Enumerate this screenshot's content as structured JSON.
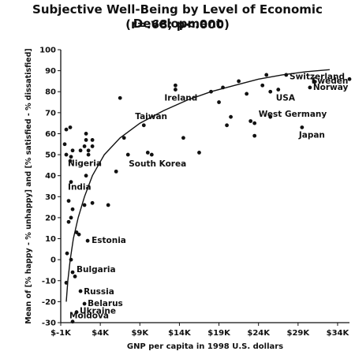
{
  "chart_data": {
    "type": "scatter",
    "title": "Subjective Well-Being by Level of Economic Development",
    "subtitle": "(r=.68; p<.000)",
    "xlabel": "GNP per capita in 1998 U.S. dollars",
    "ylabel": "Mean of [% happy - % unhappy] and [% satisfied - % dissatisfied]",
    "xlim": [
      -1,
      35.5
    ],
    "ylim": [
      -30,
      100
    ],
    "x_unit": "thousands of 1998 U.S. dollars",
    "x_ticks": [
      {
        "value": -1,
        "label": "$-1K"
      },
      {
        "value": 4,
        "label": "$4K"
      },
      {
        "value": 9,
        "label": "$9K"
      },
      {
        "value": 14,
        "label": "$14K"
      },
      {
        "value": 19,
        "label": "$19K"
      },
      {
        "value": 24,
        "label": "$24K"
      },
      {
        "value": 29,
        "label": "$29K"
      },
      {
        "value": 34,
        "label": "$34K"
      }
    ],
    "y_ticks": [
      -30,
      -20,
      -10,
      0,
      10,
      20,
      30,
      40,
      50,
      60,
      70,
      80,
      90,
      100
    ],
    "grid": false,
    "legend": "none",
    "points": [
      {
        "x": 0.5,
        "y": -29.5,
        "label": "Moldova"
      },
      {
        "x": 1.0,
        "y": -25,
        "label": "Ukraine"
      },
      {
        "x": 2.0,
        "y": -21,
        "label": "Belarus"
      },
      {
        "x": 1.5,
        "y": -15,
        "label": "Russia"
      },
      {
        "x": 0.5,
        "y": -6,
        "label": "Bulgaria"
      },
      {
        "x": 2.4,
        "y": 9,
        "label": "Estonia"
      },
      {
        "x": 0.3,
        "y": 37,
        "label": "India"
      },
      {
        "x": 0.3,
        "y": 49,
        "label": "Nigeria"
      },
      {
        "x": 7.5,
        "y": 50,
        "label": "South Korea"
      },
      {
        "x": 9.5,
        "y": 64,
        "label": "Taiwan"
      },
      {
        "x": 13.5,
        "y": 81,
        "label": "Ireland"
      },
      {
        "x": 25.5,
        "y": 68,
        "label": "West Germany"
      },
      {
        "x": 29.5,
        "y": 63,
        "label": "Japan"
      },
      {
        "x": 26.5,
        "y": 81,
        "label": "USA"
      },
      {
        "x": 30.5,
        "y": 82,
        "label": "Norway"
      },
      {
        "x": 31.0,
        "y": 85,
        "label": "Sweden"
      },
      {
        "x": 35.5,
        "y": 86,
        "label": "Switzerland"
      },
      {
        "x": -0.3,
        "y": 62
      },
      {
        "x": 0.2,
        "y": 63
      },
      {
        "x": -0.5,
        "y": 55
      },
      {
        "x": -0.3,
        "y": 50
      },
      {
        "x": 0.2,
        "y": 47
      },
      {
        "x": 0.5,
        "y": 52
      },
      {
        "x": 1.5,
        "y": 52
      },
      {
        "x": 2.0,
        "y": 54
      },
      {
        "x": 2.2,
        "y": 57
      },
      {
        "x": 2.5,
        "y": 52
      },
      {
        "x": 3.0,
        "y": 54
      },
      {
        "x": 3.0,
        "y": 57
      },
      {
        "x": 2.2,
        "y": 60
      },
      {
        "x": 2.5,
        "y": 50
      },
      {
        "x": 2.2,
        "y": 40
      },
      {
        "x": 2.0,
        "y": 26
      },
      {
        "x": 3.0,
        "y": 27
      },
      {
        "x": 0.0,
        "y": 28
      },
      {
        "x": 0.3,
        "y": 20
      },
      {
        "x": 0.0,
        "y": 18
      },
      {
        "x": 1.0,
        "y": 13
      },
      {
        "x": 1.3,
        "y": 12
      },
      {
        "x": 0.5,
        "y": 24
      },
      {
        "x": -0.2,
        "y": 3
      },
      {
        "x": 0.3,
        "y": 0
      },
      {
        "x": -0.3,
        "y": -11
      },
      {
        "x": 0.8,
        "y": -8
      },
      {
        "x": 5.0,
        "y": 26
      },
      {
        "x": 6.0,
        "y": 42
      },
      {
        "x": 6.5,
        "y": 77
      },
      {
        "x": 7.0,
        "y": 58
      },
      {
        "x": 10.0,
        "y": 51
      },
      {
        "x": 10.5,
        "y": 50
      },
      {
        "x": 13.5,
        "y": 83
      },
      {
        "x": 14.5,
        "y": 58
      },
      {
        "x": 16.5,
        "y": 51
      },
      {
        "x": 18.0,
        "y": 80
      },
      {
        "x": 19.0,
        "y": 75
      },
      {
        "x": 19.5,
        "y": 82
      },
      {
        "x": 20.0,
        "y": 64
      },
      {
        "x": 20.5,
        "y": 68
      },
      {
        "x": 21.5,
        "y": 85
      },
      {
        "x": 22.5,
        "y": 79
      },
      {
        "x": 23.0,
        "y": 66
      },
      {
        "x": 23.5,
        "y": 59
      },
      {
        "x": 23.5,
        "y": 65
      },
      {
        "x": 24.5,
        "y": 83
      },
      {
        "x": 25.0,
        "y": 88
      },
      {
        "x": 25.5,
        "y": 80
      },
      {
        "x": 27.5,
        "y": 88
      }
    ],
    "trend_curve": [
      [
        -0.3,
        -20
      ],
      [
        -0.1,
        -10
      ],
      [
        0.2,
        0
      ],
      [
        0.6,
        10
      ],
      [
        1.2,
        20
      ],
      [
        2.0,
        30
      ],
      [
        3.0,
        40
      ],
      [
        4.5,
        50
      ],
      [
        6.5,
        58
      ],
      [
        9.0,
        65
      ],
      [
        12.0,
        71
      ],
      [
        15.0,
        76
      ],
      [
        18.0,
        80
      ],
      [
        21.0,
        83
      ],
      [
        24.0,
        86
      ],
      [
        27.0,
        88
      ],
      [
        30.0,
        89.5
      ],
      [
        33.0,
        90.5
      ]
    ]
  }
}
